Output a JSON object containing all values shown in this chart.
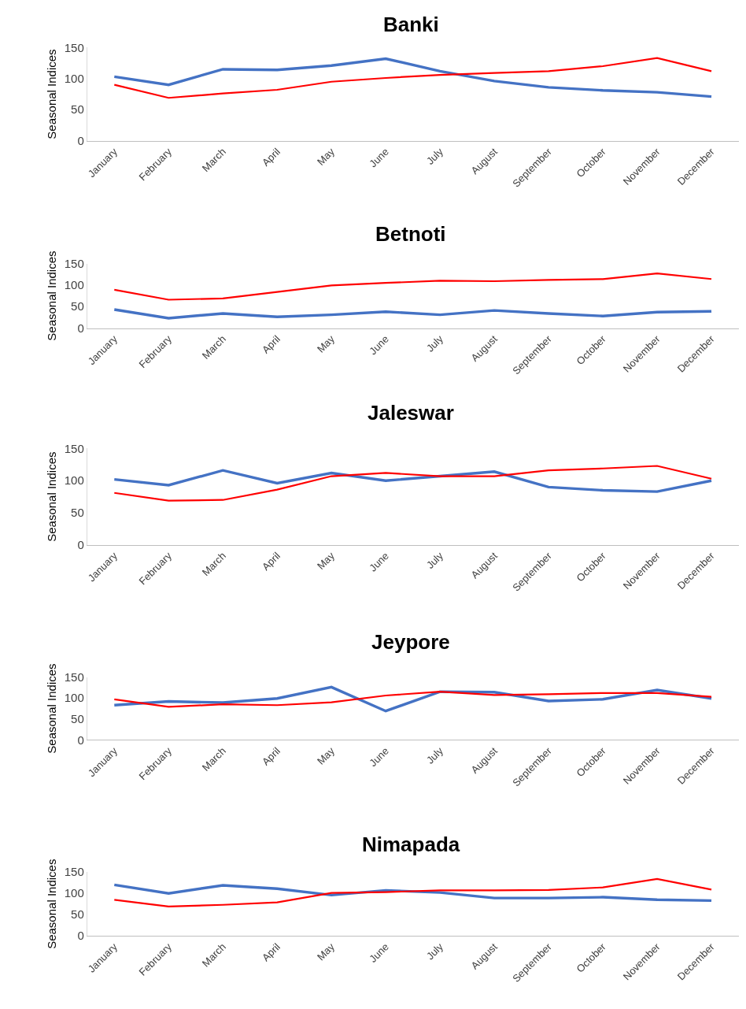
{
  "chart_data": [
    {
      "type": "line",
      "title": "Banki",
      "ylabel": "Seasonal Indices",
      "categories": [
        "January",
        "February",
        "March",
        "April",
        "May",
        "June",
        "July",
        "August",
        "September",
        "October",
        "November",
        "December"
      ],
      "ylim": [
        0,
        150
      ],
      "yticks": [
        0,
        50,
        100,
        150
      ],
      "series": [
        {
          "color": "#4472c4",
          "values": [
            103,
            90,
            115,
            114,
            121,
            132,
            112,
            96,
            86,
            81,
            78,
            71
          ]
        },
        {
          "color": "#ff0000",
          "values": [
            90,
            69,
            76,
            82,
            95,
            101,
            106,
            109,
            112,
            120,
            133,
            112
          ]
        }
      ]
    },
    {
      "type": "line",
      "title": "Betnoti",
      "ylabel": "Seasonal Indices",
      "categories": [
        "January",
        "February",
        "March",
        "April",
        "May",
        "June",
        "July",
        "August",
        "September",
        "October",
        "November",
        "December"
      ],
      "ylim": [
        0,
        150
      ],
      "yticks": [
        0,
        50,
        100,
        150
      ],
      "series": [
        {
          "color": "#4472c4",
          "values": [
            43,
            23,
            34,
            26,
            31,
            38,
            31,
            41,
            34,
            28,
            37,
            39
          ]
        },
        {
          "color": "#ff0000",
          "values": [
            89,
            66,
            69,
            84,
            99,
            105,
            110,
            109,
            112,
            114,
            127,
            114
          ]
        }
      ]
    },
    {
      "type": "line",
      "title": "Jaleswar",
      "ylabel": "Seasonal Indices",
      "categories": [
        "January",
        "February",
        "March",
        "April",
        "May",
        "June",
        "July",
        "August",
        "September",
        "October",
        "November",
        "December"
      ],
      "ylim": [
        0,
        150
      ],
      "yticks": [
        0,
        50,
        100,
        150
      ],
      "series": [
        {
          "color": "#4472c4",
          "values": [
            102,
            93,
            116,
            96,
            112,
            100,
            107,
            114,
            90,
            85,
            83,
            100
          ]
        },
        {
          "color": "#ff0000",
          "values": [
            81,
            69,
            70,
            86,
            107,
            112,
            107,
            107,
            116,
            119,
            123,
            103
          ]
        }
      ]
    },
    {
      "type": "line",
      "title": "Jeypore",
      "ylabel": "Seasonal Indices",
      "categories": [
        "January",
        "February",
        "March",
        "April",
        "May",
        "June",
        "July",
        "August",
        "September",
        "October",
        "November",
        "December"
      ],
      "ylim": [
        0,
        150
      ],
      "yticks": [
        0,
        50,
        100,
        150
      ],
      "series": [
        {
          "color": "#4472c4",
          "values": [
            83,
            92,
            89,
            99,
            126,
            69,
            115,
            114,
            93,
            97,
            119,
            99
          ]
        },
        {
          "color": "#ff0000",
          "values": [
            97,
            79,
            85,
            83,
            90,
            106,
            115,
            107,
            109,
            112,
            112,
            103
          ]
        }
      ]
    },
    {
      "type": "line",
      "title": "Nimapada",
      "ylabel": "Seasonal Indices",
      "categories": [
        "January",
        "February",
        "March",
        "April",
        "May",
        "June",
        "July",
        "August",
        "September",
        "October",
        "November",
        "December"
      ],
      "ylim": [
        0,
        150
      ],
      "yticks": [
        0,
        50,
        100,
        150
      ],
      "series": [
        {
          "color": "#4472c4",
          "values": [
            120,
            100,
            119,
            111,
            96,
            107,
            102,
            89,
            89,
            91,
            85,
            83
          ]
        },
        {
          "color": "#ff0000",
          "values": [
            85,
            69,
            73,
            79,
            101,
            103,
            107,
            107,
            108,
            114,
            134,
            109
          ]
        }
      ]
    }
  ]
}
